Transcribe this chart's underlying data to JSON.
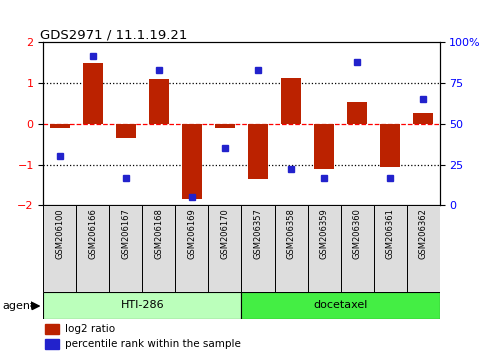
{
  "title": "GDS2971 / 11.1.19.21",
  "samples": [
    "GSM206100",
    "GSM206166",
    "GSM206167",
    "GSM206168",
    "GSM206169",
    "GSM206170",
    "GSM206357",
    "GSM206358",
    "GSM206359",
    "GSM206360",
    "GSM206361",
    "GSM206362"
  ],
  "log2_ratio": [
    -0.1,
    1.5,
    -0.35,
    1.1,
    -1.85,
    -0.1,
    -1.35,
    1.12,
    -1.1,
    0.55,
    -1.05,
    0.28
  ],
  "percentile_rank": [
    30,
    92,
    17,
    83,
    5,
    35,
    83,
    22,
    17,
    88,
    17,
    65
  ],
  "groups": [
    {
      "label": "HTI-286",
      "start": 0,
      "end": 6,
      "color": "#bbffbb"
    },
    {
      "label": "docetaxel",
      "start": 6,
      "end": 12,
      "color": "#44ee44"
    }
  ],
  "bar_color": "#bb2200",
  "dot_color": "#2222cc",
  "ylim": [
    -2,
    2
  ],
  "yticks_left": [
    -2,
    -1,
    0,
    1,
    2
  ],
  "yticks_right_pct": [
    0,
    25,
    50,
    75,
    100
  ],
  "hline_positions": [
    -1,
    0,
    1
  ],
  "hline_styles": [
    "dotted",
    "dashed",
    "dotted"
  ],
  "hline_colors": [
    "black",
    "red",
    "black"
  ],
  "background_color": "#ffffff",
  "legend_red_label": "log2 ratio",
  "legend_blue_label": "percentile rank within the sample",
  "agent_label": "agent",
  "bar_width": 0.6,
  "cell_bg": "#dddddd"
}
